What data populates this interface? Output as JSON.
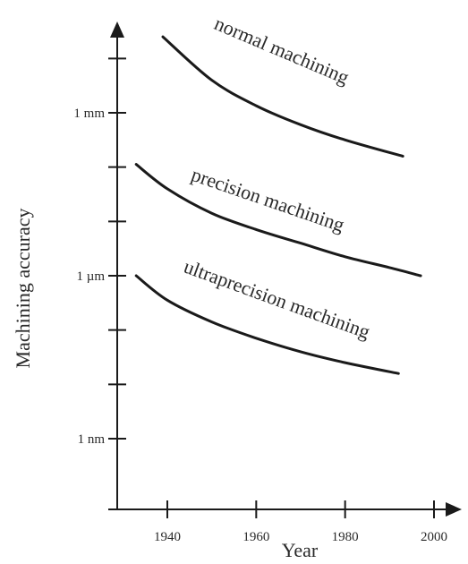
{
  "chart_data": {
    "type": "line",
    "title": "",
    "xlabel": "Year",
    "ylabel": "Machining accuracy",
    "x_scale": "linear",
    "y_scale": "log",
    "xlim": [
      1930,
      2005
    ],
    "ylim_exponent": [
      -9.5,
      -1.5
    ],
    "x_ticks": [
      1940,
      1960,
      1980,
      2000
    ],
    "x_tick_labels": [
      "1940",
      "1960",
      "1980",
      "2000"
    ],
    "y_labeled_ticks": [
      {
        "exponent": -3,
        "label": "1 mm"
      },
      {
        "exponent": -6,
        "label": "1 µm"
      },
      {
        "exponent": -9,
        "label": "1 nm"
      }
    ],
    "y_unlabeled_tick_exponents": [
      -2,
      -4,
      -5,
      -7,
      -8
    ],
    "grid": false,
    "series": [
      {
        "label": "normal machining",
        "points": [
          {
            "x": 1939,
            "y_exponent": -1.6
          },
          {
            "x": 1950,
            "y_exponent": -2.4
          },
          {
            "x": 1960,
            "y_exponent": -2.87
          },
          {
            "x": 1970,
            "y_exponent": -3.22
          },
          {
            "x": 1980,
            "y_exponent": -3.5
          },
          {
            "x": 1993,
            "y_exponent": -3.8
          }
        ]
      },
      {
        "label": "precision machining",
        "points": [
          {
            "x": 1933,
            "y_exponent": -3.95
          },
          {
            "x": 1940,
            "y_exponent": -4.4
          },
          {
            "x": 1950,
            "y_exponent": -4.85
          },
          {
            "x": 1960,
            "y_exponent": -5.15
          },
          {
            "x": 1970,
            "y_exponent": -5.4
          },
          {
            "x": 1980,
            "y_exponent": -5.65
          },
          {
            "x": 1990,
            "y_exponent": -5.85
          },
          {
            "x": 1997,
            "y_exponent": -6.0
          }
        ]
      },
      {
        "label": "ultraprecision machining",
        "points": [
          {
            "x": 1933,
            "y_exponent": -6.0
          },
          {
            "x": 1940,
            "y_exponent": -6.45
          },
          {
            "x": 1950,
            "y_exponent": -6.85
          },
          {
            "x": 1960,
            "y_exponent": -7.15
          },
          {
            "x": 1970,
            "y_exponent": -7.4
          },
          {
            "x": 1980,
            "y_exponent": -7.6
          },
          {
            "x": 1992,
            "y_exponent": -7.8
          }
        ]
      }
    ]
  }
}
